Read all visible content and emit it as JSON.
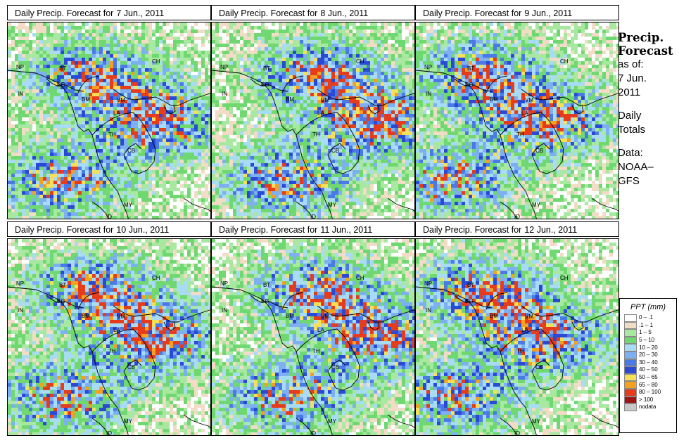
{
  "panels": [
    {
      "title_prefix": "Daily Precip. Forecast for",
      "date": "7 Jun., 2011",
      "seed": 7
    },
    {
      "title_prefix": "Daily Precip. Forecast for",
      "date": "8 Jun., 2011",
      "seed": 8
    },
    {
      "title_prefix": "Daily Precip. Forecast for",
      "date": "9 Jun., 2011",
      "seed": 9
    },
    {
      "title_prefix": "Daily Precip. Forecast for",
      "date": "10 Jun., 2011",
      "seed": 10
    },
    {
      "title_prefix": "Daily Precip. Forecast for",
      "date": "11 Jun., 2011",
      "seed": 11
    },
    {
      "title_prefix": "Daily Precip. Forecast for",
      "date": "12 Jun., 2011",
      "seed": 12
    }
  ],
  "map_labels": [
    "CH",
    "NP",
    "BT",
    "BG",
    "IN",
    "BM",
    "VM",
    "LA",
    "TH",
    "CB",
    "MY",
    "ID"
  ],
  "side": {
    "title_line1": "Precip.",
    "title_line2": "Forecast",
    "asof_label": "as of:",
    "asof_date1": "7 Jun.",
    "asof_date2": "2011",
    "totals1": "Daily",
    "totals2": "Totals",
    "data1": "Data:",
    "data2": "NOAA–",
    "data3": "GFS"
  },
  "legend": {
    "title": "PPT (mm)",
    "items": [
      {
        "label": "0 – .1",
        "color": "#ffffff"
      },
      {
        "label": ".1 – 1",
        "color": "#f2dcc6"
      },
      {
        "label": "1 – 5",
        "color": "#a8e8a0"
      },
      {
        "label": "5 – 10",
        "color": "#6fd870"
      },
      {
        "label": "10 – 20",
        "color": "#a8dcf4"
      },
      {
        "label": "20 – 30",
        "color": "#7cb0f0"
      },
      {
        "label": "30 – 40",
        "color": "#4a7ae6"
      },
      {
        "label": "40 – 50",
        "color": "#2a4ad6"
      },
      {
        "label": "50 – 65",
        "color": "#f6e05a"
      },
      {
        "label": "65 – 80",
        "color": "#f4a020"
      },
      {
        "label": "80 – 100",
        "color": "#e63c1c"
      },
      {
        "label": "> 100",
        "color": "#a01414"
      },
      {
        "label": "nodata",
        "color": "#c8c8c8"
      }
    ]
  }
}
